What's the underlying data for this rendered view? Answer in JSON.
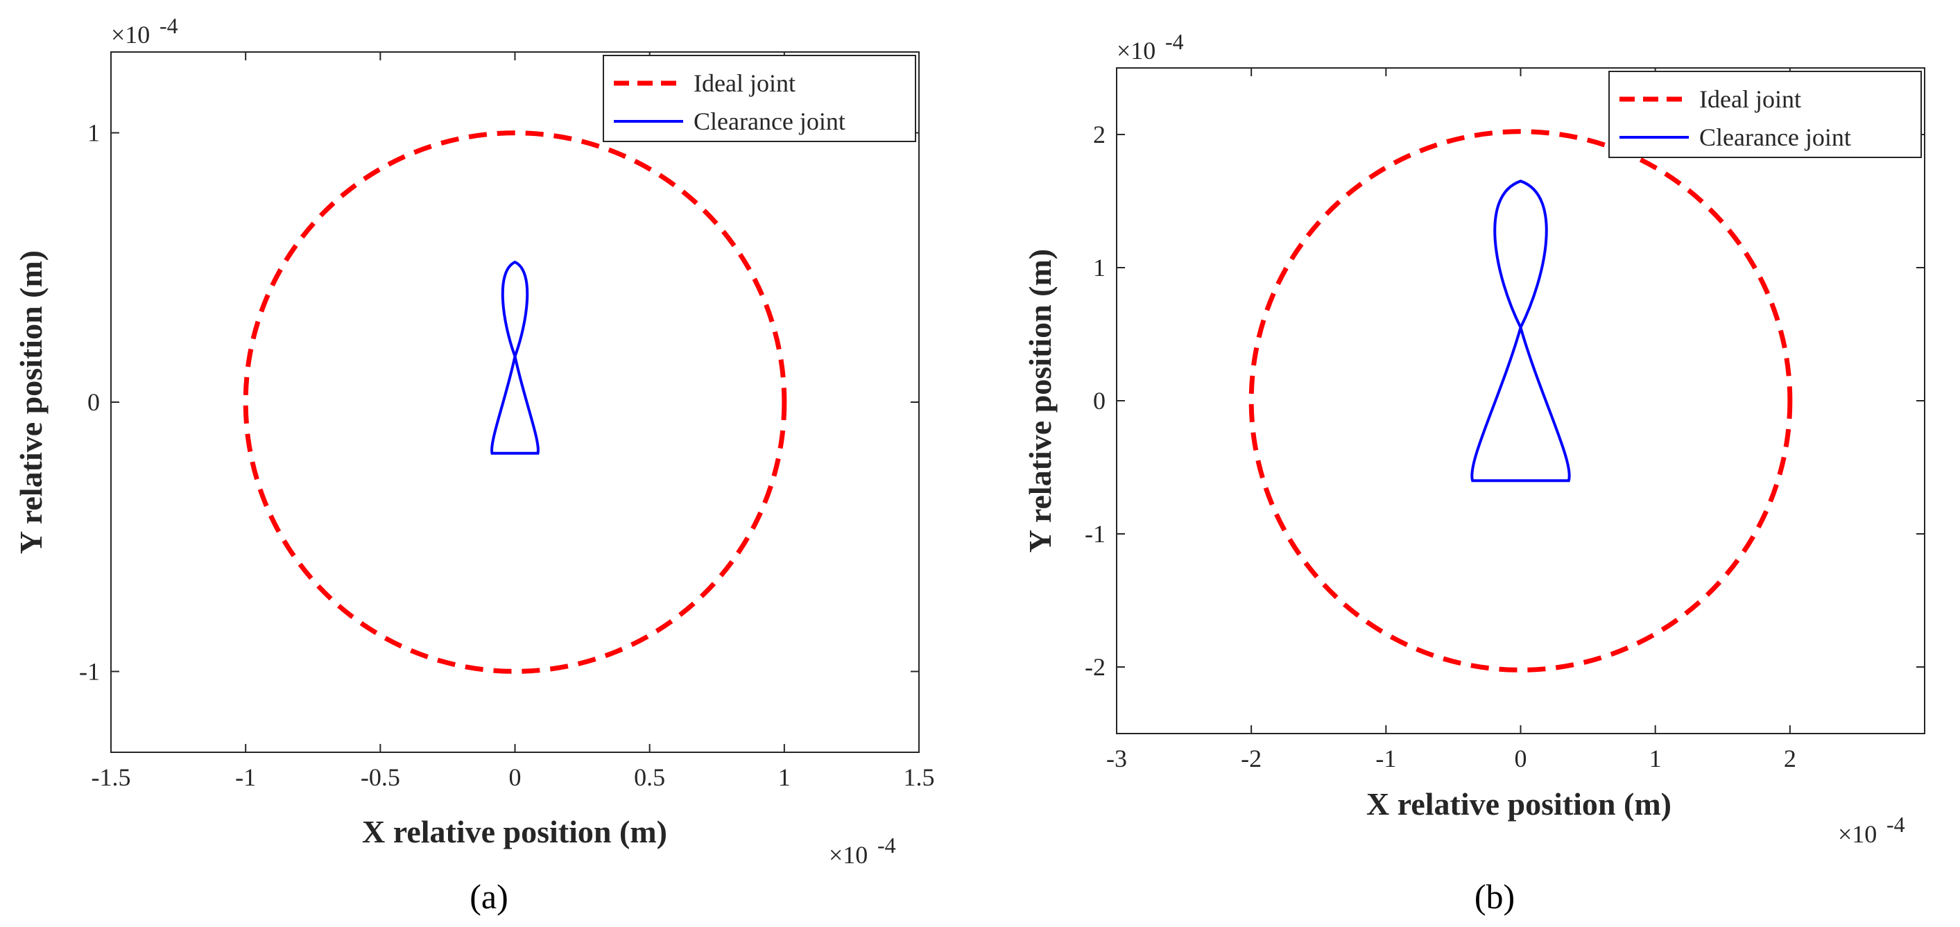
{
  "chart_data": [
    {
      "panel_label": "(a)",
      "type": "line",
      "xlabel": "X relative position (m)",
      "ylabel": "Y relative position (m)",
      "x_multiplier": "×10",
      "x_exponent": "-4",
      "y_multiplier": "×10",
      "y_exponent": "-4",
      "xlim": [
        -1.5,
        1.5
      ],
      "ylim": [
        -1.3,
        1.3
      ],
      "xticks": [
        -1.5,
        -1,
        -0.5,
        0,
        0.5,
        1,
        1.5
      ],
      "xtick_labels": [
        "-1.5",
        "-1",
        "-0.5",
        "0",
        "0.5",
        "1",
        "1.5"
      ],
      "yticks": [
        -1,
        0,
        1
      ],
      "ytick_labels": [
        "-1",
        "0",
        "1"
      ],
      "legend_position": "top-right",
      "series": [
        {
          "name": "Ideal joint",
          "kind": "circle",
          "color": "#ff0000",
          "style": "dashed",
          "center": [
            0,
            0
          ],
          "radius": 1.0
        },
        {
          "name": "Clearance joint",
          "kind": "figure-eight",
          "color": "#0000ff",
          "style": "solid",
          "x_halfwidth": 0.1,
          "y_bottom": -0.19,
          "y_top": 0.52,
          "y_cross": 0.17
        }
      ]
    },
    {
      "panel_label": "(b)",
      "type": "line",
      "xlabel": "X relative position (m)",
      "ylabel": "Y relative position (m)",
      "x_multiplier": "×10",
      "x_exponent": "-4",
      "y_multiplier": "×10",
      "y_exponent": "-4",
      "xlim": [
        -3,
        3
      ],
      "ylim": [
        -2.5,
        2.5
      ],
      "xticks": [
        -3,
        -2,
        -1,
        0,
        1,
        2
      ],
      "xtick_labels": [
        "-3",
        "-2",
        "-1",
        "0",
        "1",
        "2"
      ],
      "yticks": [
        -2,
        -1,
        0,
        1,
        2
      ],
      "ytick_labels": [
        "-2",
        "-1",
        "0",
        "1",
        "2"
      ],
      "legend_position": "top-right",
      "series": [
        {
          "name": "Ideal joint",
          "kind": "circle",
          "color": "#ff0000",
          "style": "dashed",
          "center": [
            0,
            0
          ],
          "radius": 2.0
        },
        {
          "name": "Clearance joint",
          "kind": "figure-eight",
          "color": "#0000ff",
          "style": "solid",
          "x_halfwidth": 0.42,
          "y_bottom": -0.6,
          "y_top": 1.65,
          "y_cross": 0.55
        }
      ]
    }
  ]
}
